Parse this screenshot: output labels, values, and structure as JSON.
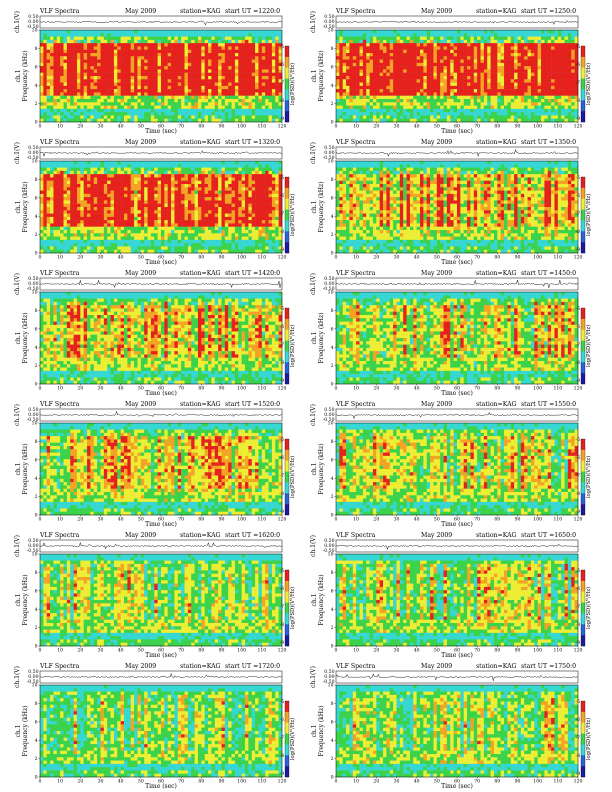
{
  "figure": {
    "title": "VLF Spectra",
    "date": "May 2009",
    "station": "station=KAG",
    "start_prefix": "start  UT ="
  },
  "axes": {
    "ch_label": "ch.1(V)",
    "freq_label_1": "ch.1",
    "freq_label_2": "Frequency  (kHz)",
    "x_label": "Time  (sec)",
    "colorbar_label": "log(PSD)(V²/Hz)",
    "x_ticks": [
      "0",
      "10",
      "20",
      "30",
      "40",
      "50",
      "60",
      "70",
      "80",
      "90",
      "100",
      "110",
      "120"
    ],
    "f_ticks": [
      "0",
      "2",
      "4",
      "6",
      "8",
      "10"
    ],
    "v_ticks": [
      "0.50",
      "0.00",
      "-0.50"
    ],
    "cb_ticks": [
      "-5",
      "-6",
      "-7",
      "-8",
      "-9"
    ]
  },
  "colors": {
    "red": "#e8201c",
    "orange": "#f6a323",
    "yellow": "#f0ee33",
    "green": "#3cd24a",
    "cyan": "#37d7d3",
    "colorbar": [
      "#e8201c",
      "#f6a323",
      "#f0ee33",
      "#3cd24a",
      "#37d7d3",
      "#2a62d9",
      "#1c1ba0"
    ]
  },
  "chart_data": [
    {
      "type": "heatmap",
      "start_ut": "1220:0",
      "x_range": [
        0,
        120
      ],
      "y_range_khz": [
        0,
        10
      ],
      "v_range": [
        -0.5,
        0.5
      ],
      "intensity": 0.85
    },
    {
      "type": "heatmap",
      "start_ut": "1250:0",
      "x_range": [
        0,
        120
      ],
      "y_range_khz": [
        0,
        10
      ],
      "v_range": [
        -0.5,
        0.5
      ],
      "intensity": 0.85
    },
    {
      "type": "heatmap",
      "start_ut": "1320:0",
      "x_range": [
        0,
        120
      ],
      "y_range_khz": [
        0,
        10
      ],
      "v_range": [
        -0.5,
        0.5
      ],
      "intensity": 0.8
    },
    {
      "type": "heatmap",
      "start_ut": "1350:0",
      "x_range": [
        0,
        120
      ],
      "y_range_khz": [
        0,
        10
      ],
      "v_range": [
        -0.5,
        0.5
      ],
      "intensity": 0.6
    },
    {
      "type": "heatmap",
      "start_ut": "1420:0",
      "x_range": [
        0,
        120
      ],
      "y_range_khz": [
        0,
        10
      ],
      "v_range": [
        -0.5,
        0.5
      ],
      "intensity": 0.55
    },
    {
      "type": "heatmap",
      "start_ut": "1450:0",
      "x_range": [
        0,
        120
      ],
      "y_range_khz": [
        0,
        10
      ],
      "v_range": [
        -0.5,
        0.5
      ],
      "intensity": 0.5
    },
    {
      "type": "heatmap",
      "start_ut": "1520:0",
      "x_range": [
        0,
        120
      ],
      "y_range_khz": [
        0,
        10
      ],
      "v_range": [
        -0.5,
        0.5
      ],
      "intensity": 0.5
    },
    {
      "type": "heatmap",
      "start_ut": "1550:0",
      "x_range": [
        0,
        120
      ],
      "y_range_khz": [
        0,
        10
      ],
      "v_range": [
        -0.5,
        0.5
      ],
      "intensity": 0.45
    },
    {
      "type": "heatmap",
      "start_ut": "1620:0",
      "x_range": [
        0,
        120
      ],
      "y_range_khz": [
        0,
        10
      ],
      "v_range": [
        -0.5,
        0.5
      ],
      "intensity": 0.4
    },
    {
      "type": "heatmap",
      "start_ut": "1650:0",
      "x_range": [
        0,
        120
      ],
      "y_range_khz": [
        0,
        10
      ],
      "v_range": [
        -0.5,
        0.5
      ],
      "intensity": 0.4
    },
    {
      "type": "heatmap",
      "start_ut": "1720:0",
      "x_range": [
        0,
        120
      ],
      "y_range_khz": [
        0,
        10
      ],
      "v_range": [
        -0.5,
        0.5
      ],
      "intensity": 0.38
    },
    {
      "type": "heatmap",
      "start_ut": "1750:0",
      "x_range": [
        0,
        120
      ],
      "y_range_khz": [
        0,
        10
      ],
      "v_range": [
        -0.5,
        0.5
      ],
      "intensity": 0.4
    }
  ]
}
